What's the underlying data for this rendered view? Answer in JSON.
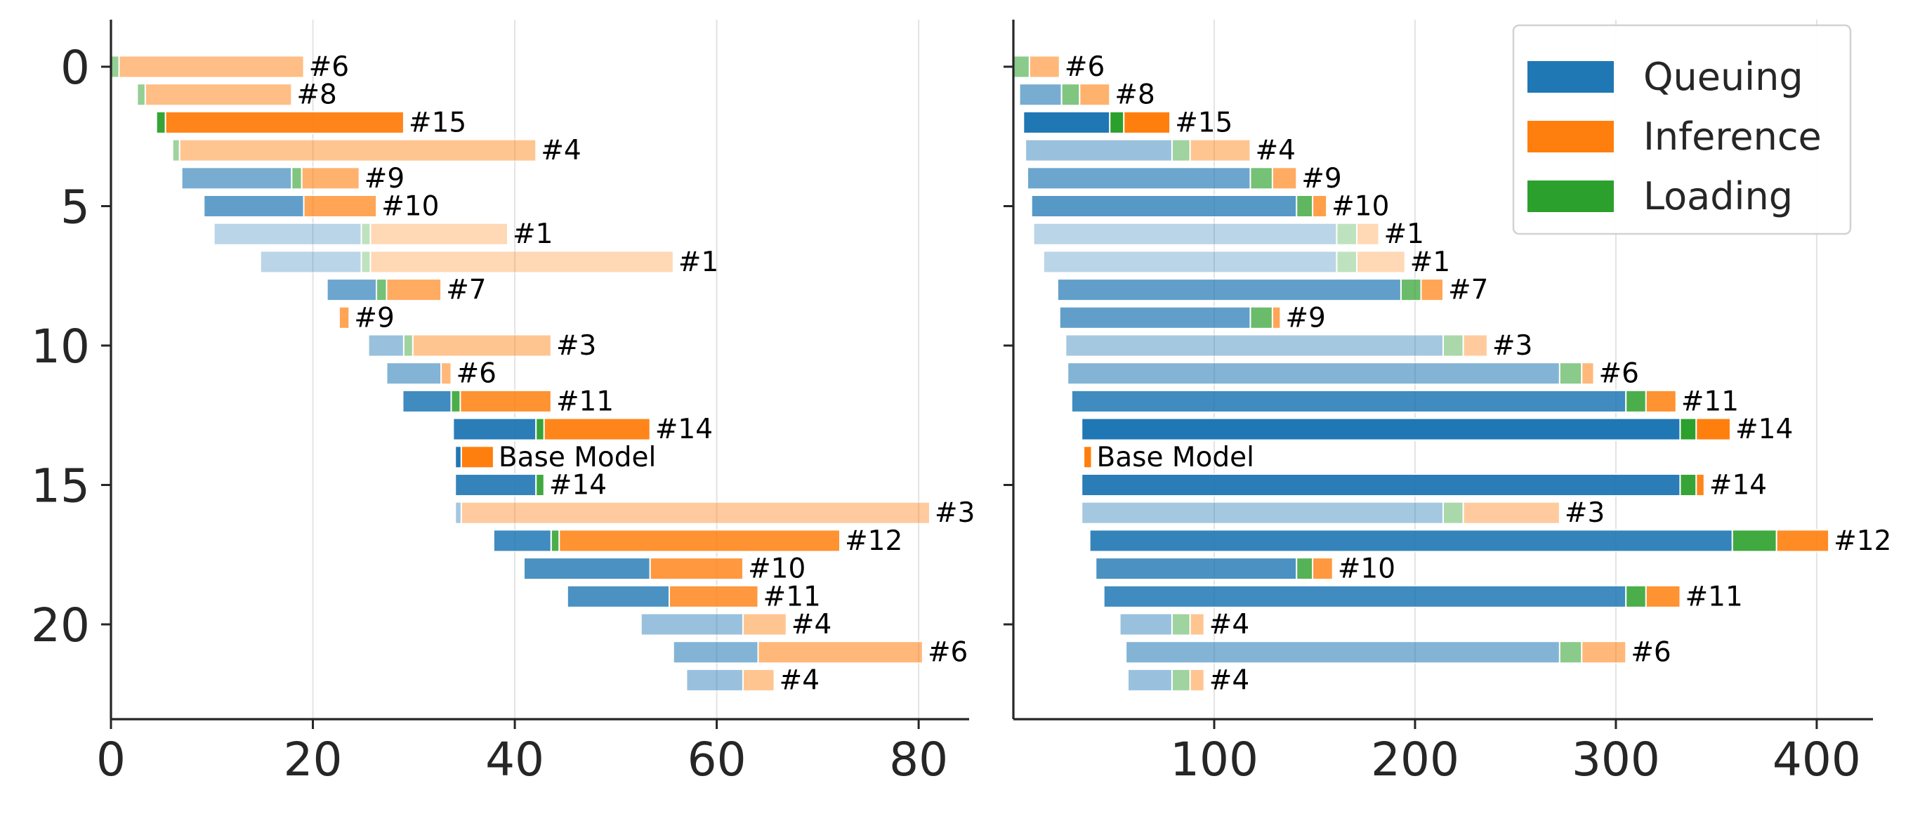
{
  "colors": {
    "queuing": "#1f77b4",
    "inference": "#ff7f0e",
    "loading": "#2ca02c",
    "grid": "#e3e3e3",
    "axis": "#262626"
  },
  "legend": {
    "placement": "top-right",
    "entries": [
      {
        "label": "Queuing",
        "color": "#1f77b4"
      },
      {
        "label": "Inference",
        "color": "#ff7f0e"
      },
      {
        "label": "Loading",
        "color": "#2ca02c"
      }
    ]
  },
  "chart_data": [
    {
      "type": "bar",
      "orientation": "horizontal-stacked",
      "xlim": [
        0,
        85
      ],
      "ylim": [
        23.5,
        -1.5
      ],
      "xticks": [
        0,
        20,
        40,
        60,
        80
      ],
      "yticks": [
        0,
        5,
        10,
        15,
        20
      ],
      "grid": "vertical",
      "bars": [
        {
          "row": 0,
          "label": "#6",
          "alpha": 0.5,
          "segments": [
            [
              "loading",
              0,
              0.8
            ],
            [
              "inference",
              0.8,
              19.1
            ]
          ]
        },
        {
          "row": 1,
          "label": "#8",
          "alpha": 0.5,
          "segments": [
            [
              "loading",
              2.6,
              3.4
            ],
            [
              "inference",
              3.4,
              17.9
            ]
          ]
        },
        {
          "row": 2,
          "label": "#15",
          "alpha": 0.95,
          "segments": [
            [
              "loading",
              4.5,
              5.4
            ],
            [
              "inference",
              5.4,
              29.0
            ]
          ]
        },
        {
          "row": 3,
          "label": "#4",
          "alpha": 0.45,
          "segments": [
            [
              "loading",
              6.1,
              6.8
            ],
            [
              "inference",
              6.8,
              42.1
            ]
          ]
        },
        {
          "row": 4,
          "label": "#9",
          "alpha": 0.6,
          "segments": [
            [
              "queuing",
              7.0,
              17.9
            ],
            [
              "loading",
              17.9,
              18.9
            ],
            [
              "inference",
              18.9,
              24.6
            ]
          ]
        },
        {
          "row": 5,
          "label": "#10",
          "alpha": 0.7,
          "segments": [
            [
              "queuing",
              9.2,
              19.1
            ],
            [
              "inference",
              19.1,
              26.3
            ]
          ]
        },
        {
          "row": 6,
          "label": "#1",
          "alpha": 0.3,
          "segments": [
            [
              "queuing",
              10.2,
              24.8
            ],
            [
              "loading",
              24.8,
              25.7
            ],
            [
              "inference",
              25.7,
              39.3
            ]
          ]
        },
        {
          "row": 7,
          "label": "#1",
          "alpha": 0.3,
          "segments": [
            [
              "queuing",
              14.8,
              24.8
            ],
            [
              "loading",
              24.8,
              25.7
            ],
            [
              "inference",
              25.7,
              55.7
            ]
          ]
        },
        {
          "row": 8,
          "label": "#7",
          "alpha": 0.65,
          "segments": [
            [
              "queuing",
              21.4,
              26.3
            ],
            [
              "loading",
              26.3,
              27.3
            ],
            [
              "inference",
              27.3,
              32.7
            ]
          ]
        },
        {
          "row": 9,
          "label": "#9",
          "alpha": 0.7,
          "segments": [
            [
              "inference",
              22.6,
              23.6
            ]
          ]
        },
        {
          "row": 10,
          "label": "#3",
          "alpha": 0.45,
          "segments": [
            [
              "queuing",
              25.5,
              29.0
            ],
            [
              "loading",
              29.0,
              29.9
            ],
            [
              "inference",
              29.9,
              43.6
            ]
          ]
        },
        {
          "row": 11,
          "label": "#6",
          "alpha": 0.55,
          "segments": [
            [
              "queuing",
              27.3,
              32.7
            ],
            [
              "inference",
              32.7,
              33.7
            ]
          ]
        },
        {
          "row": 12,
          "label": "#11",
          "alpha": 0.85,
          "segments": [
            [
              "queuing",
              28.9,
              33.7
            ],
            [
              "loading",
              33.7,
              34.6
            ],
            [
              "inference",
              34.6,
              43.6
            ]
          ]
        },
        {
          "row": 13,
          "label": "#14",
          "alpha": 0.95,
          "segments": [
            [
              "queuing",
              33.9,
              42.1
            ],
            [
              "loading",
              42.1,
              42.9
            ],
            [
              "inference",
              42.9,
              53.4
            ]
          ]
        },
        {
          "row": 14,
          "label": "Base Model",
          "alpha": 1.0,
          "segments": [
            [
              "queuing",
              34.1,
              34.7
            ],
            [
              "inference",
              34.7,
              37.9
            ]
          ]
        },
        {
          "row": 15,
          "label": "#14",
          "alpha": 0.9,
          "segments": [
            [
              "queuing",
              34.1,
              42.1
            ],
            [
              "loading",
              42.1,
              42.9
            ]
          ]
        },
        {
          "row": 16,
          "label": "#3",
          "alpha": 0.4,
          "segments": [
            [
              "queuing",
              34.1,
              34.7
            ],
            [
              "inference",
              34.7,
              81.1
            ]
          ]
        },
        {
          "row": 17,
          "label": "#12",
          "alpha": 0.85,
          "segments": [
            [
              "queuing",
              37.9,
              43.6
            ],
            [
              "loading",
              43.6,
              44.4
            ],
            [
              "inference",
              44.4,
              72.2
            ]
          ]
        },
        {
          "row": 18,
          "label": "#10",
          "alpha": 0.8,
          "segments": [
            [
              "queuing",
              40.9,
              53.4
            ],
            [
              "inference",
              53.4,
              62.6
            ]
          ]
        },
        {
          "row": 19,
          "label": "#11",
          "alpha": 0.8,
          "segments": [
            [
              "queuing",
              45.2,
              55.3
            ],
            [
              "inference",
              55.3,
              64.1
            ]
          ]
        },
        {
          "row": 20,
          "label": "#4",
          "alpha": 0.45,
          "segments": [
            [
              "queuing",
              52.5,
              62.6
            ],
            [
              "inference",
              62.6,
              66.9
            ]
          ]
        },
        {
          "row": 21,
          "label": "#6",
          "alpha": 0.55,
          "segments": [
            [
              "queuing",
              55.7,
              64.1
            ],
            [
              "inference",
              64.1,
              80.4
            ]
          ]
        },
        {
          "row": 22,
          "label": "#4",
          "alpha": 0.45,
          "segments": [
            [
              "queuing",
              57.0,
              62.6
            ],
            [
              "inference",
              62.6,
              65.7
            ]
          ]
        }
      ]
    },
    {
      "type": "bar",
      "orientation": "horizontal-stacked",
      "xlim": [
        0,
        428
      ],
      "ylim": [
        23.5,
        -1.5
      ],
      "xticks": [
        100,
        200,
        300,
        400
      ],
      "yticks": [
        0,
        5,
        10,
        15,
        20
      ],
      "grid": "vertical",
      "bars": [
        {
          "row": 0,
          "label": "#6",
          "alpha": 0.55,
          "segments": [
            [
              "loading",
              0,
              8
            ],
            [
              "inference",
              8,
              23
            ]
          ]
        },
        {
          "row": 1,
          "label": "#8",
          "alpha": 0.6,
          "segments": [
            [
              "queuing",
              3,
              24
            ],
            [
              "loading",
              24,
              33
            ],
            [
              "inference",
              33,
              48
            ]
          ]
        },
        {
          "row": 2,
          "label": "#15",
          "alpha": 1.0,
          "segments": [
            [
              "queuing",
              5,
              48
            ],
            [
              "loading",
              48,
              55
            ],
            [
              "inference",
              55,
              78
            ]
          ]
        },
        {
          "row": 3,
          "label": "#4",
          "alpha": 0.45,
          "segments": [
            [
              "queuing",
              6,
              79
            ],
            [
              "loading",
              79,
              88
            ],
            [
              "inference",
              88,
              118
            ]
          ]
        },
        {
          "row": 4,
          "label": "#9",
          "alpha": 0.65,
          "segments": [
            [
              "queuing",
              7,
              118
            ],
            [
              "loading",
              118,
              129
            ],
            [
              "inference",
              129,
              141
            ]
          ]
        },
        {
          "row": 5,
          "label": "#10",
          "alpha": 0.75,
          "segments": [
            [
              "queuing",
              9,
              141
            ],
            [
              "loading",
              141,
              149
            ],
            [
              "inference",
              149,
              156
            ]
          ]
        },
        {
          "row": 6,
          "label": "#1",
          "alpha": 0.3,
          "segments": [
            [
              "queuing",
              10,
              161
            ],
            [
              "loading",
              161,
              171
            ],
            [
              "inference",
              171,
              182
            ]
          ]
        },
        {
          "row": 7,
          "label": "#1",
          "alpha": 0.3,
          "segments": [
            [
              "queuing",
              15,
              161
            ],
            [
              "loading",
              161,
              171
            ],
            [
              "inference",
              171,
              195
            ]
          ]
        },
        {
          "row": 8,
          "label": "#7",
          "alpha": 0.7,
          "segments": [
            [
              "queuing",
              22,
              193
            ],
            [
              "loading",
              193,
              203
            ],
            [
              "inference",
              203,
              214
            ]
          ]
        },
        {
          "row": 9,
          "label": "#9",
          "alpha": 0.7,
          "segments": [
            [
              "queuing",
              23,
              118
            ],
            [
              "loading",
              118,
              129
            ],
            [
              "inference",
              129,
              133
            ]
          ]
        },
        {
          "row": 10,
          "label": "#3",
          "alpha": 0.4,
          "segments": [
            [
              "queuing",
              26,
              214
            ],
            [
              "loading",
              214,
              224
            ],
            [
              "inference",
              224,
              236
            ]
          ]
        },
        {
          "row": 11,
          "label": "#6",
          "alpha": 0.55,
          "segments": [
            [
              "queuing",
              27,
              272
            ],
            [
              "loading",
              272,
              283
            ],
            [
              "inference",
              283,
              289
            ]
          ]
        },
        {
          "row": 12,
          "label": "#11",
          "alpha": 0.85,
          "segments": [
            [
              "queuing",
              29,
              305
            ],
            [
              "loading",
              305,
              315
            ],
            [
              "inference",
              315,
              330
            ]
          ]
        },
        {
          "row": 13,
          "label": "#14",
          "alpha": 1.0,
          "segments": [
            [
              "queuing",
              34,
              332
            ],
            [
              "loading",
              332,
              340
            ],
            [
              "inference",
              340,
              357
            ]
          ]
        },
        {
          "row": 14,
          "label": "Base Model",
          "alpha": 1.0,
          "segments": [
            [
              "inference",
              35,
              39
            ]
          ]
        },
        {
          "row": 15,
          "label": "#14",
          "alpha": 0.95,
          "segments": [
            [
              "queuing",
              34,
              332
            ],
            [
              "loading",
              332,
              340
            ],
            [
              "inference",
              340,
              344
            ]
          ]
        },
        {
          "row": 16,
          "label": "#3",
          "alpha": 0.4,
          "segments": [
            [
              "queuing",
              34,
              214
            ],
            [
              "loading",
              214,
              224
            ],
            [
              "inference",
              224,
              272
            ]
          ]
        },
        {
          "row": 17,
          "label": "#12",
          "alpha": 0.9,
          "segments": [
            [
              "queuing",
              38,
              358
            ],
            [
              "loading",
              358,
              380
            ],
            [
              "inference",
              380,
              406
            ]
          ]
        },
        {
          "row": 18,
          "label": "#10",
          "alpha": 0.8,
          "segments": [
            [
              "queuing",
              41,
              141
            ],
            [
              "loading",
              141,
              149
            ],
            [
              "inference",
              149,
              159
            ]
          ]
        },
        {
          "row": 19,
          "label": "#11",
          "alpha": 0.85,
          "segments": [
            [
              "queuing",
              45,
              305
            ],
            [
              "loading",
              305,
              315
            ],
            [
              "inference",
              315,
              332
            ]
          ]
        },
        {
          "row": 20,
          "label": "#4",
          "alpha": 0.45,
          "segments": [
            [
              "queuing",
              53,
              79
            ],
            [
              "loading",
              79,
              88
            ],
            [
              "inference",
              88,
              95
            ]
          ]
        },
        {
          "row": 21,
          "label": "#6",
          "alpha": 0.55,
          "segments": [
            [
              "queuing",
              56,
              272
            ],
            [
              "loading",
              272,
              283
            ],
            [
              "inference",
              283,
              305
            ]
          ]
        },
        {
          "row": 22,
          "label": "#4",
          "alpha": 0.45,
          "segments": [
            [
              "queuing",
              57,
              79
            ],
            [
              "loading",
              79,
              88
            ],
            [
              "inference",
              88,
              95
            ]
          ]
        }
      ]
    }
  ]
}
